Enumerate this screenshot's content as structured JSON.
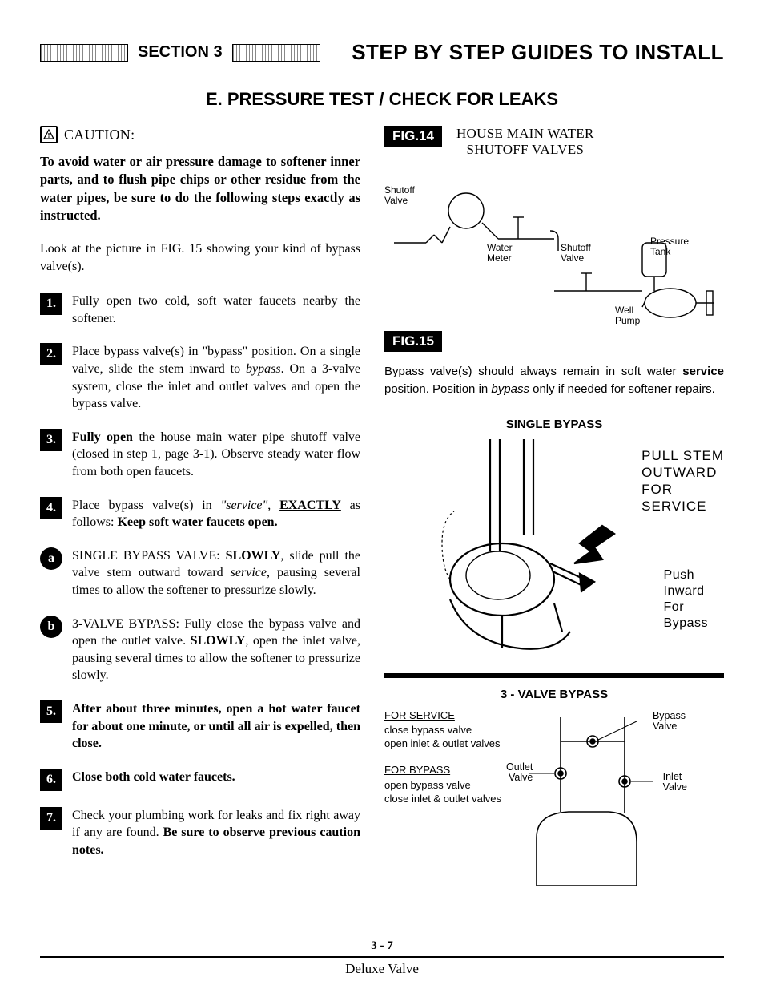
{
  "header": {
    "section_label": "SECTION 3",
    "main_title": "STEP BY STEP GUIDES TO INSTALL"
  },
  "subsection": "E.  PRESSURE TEST / CHECK FOR LEAKS",
  "caution": {
    "icon_glyph": "⚠",
    "label": "CAUTION:",
    "body": "To avoid water or air pressure damage to softener inner parts, and to flush pipe chips or other residue from the water pipes, be sure to do the following steps exactly as instructed."
  },
  "intro": "Look at the picture in FIG. 15 showing your kind of bypass valve(s).",
  "steps": [
    {
      "marker": "1.",
      "shape": "square",
      "body_html": "Fully open two cold, soft water faucets nearby the softener."
    },
    {
      "marker": "2.",
      "shape": "square",
      "body_html": "Place bypass valve(s) in \"bypass\" position. On a single valve, slide the stem inward to <span class=\"italic\">bypass</span>. On a 3-valve system, close the inlet and outlet valves and open the bypass valve."
    },
    {
      "marker": "3.",
      "shape": "square",
      "body_html": "<span class=\"bold\">Fully open</span> the house main water pipe shutoff valve (closed in step 1, page 3-1). Observe steady water flow from both open faucets."
    },
    {
      "marker": "4.",
      "shape": "square",
      "body_html": "Place bypass valve(s) in <span class=\"italic\">\"service\"</span>, <span class=\"bold underline\">EXACTLY</span> as follows: <span class=\"bold\">Keep soft water faucets open.</span>"
    },
    {
      "marker": "a",
      "shape": "round",
      "body_html": "SINGLE BYPASS VALVE: <span class=\"bold\">SLOWLY</span>, slide pull the valve stem outward toward <span class=\"italic\">service</span>, pausing several times to allow the softener to pressurize slowly."
    },
    {
      "marker": "b",
      "shape": "round",
      "body_html": "3-VALVE BYPASS: Fully close the bypass valve and open the outlet valve. <span class=\"bold\">SLOWLY</span>, open the inlet valve, pausing several times to allow the softener to pressurize slowly."
    },
    {
      "marker": "5.",
      "shape": "square",
      "body_html": "<span class=\"bold\">After about three minutes, open a hot water faucet for about one minute, or until all air is expelled, then close.</span>"
    },
    {
      "marker": "6.",
      "shape": "square",
      "body_html": "<span class=\"bold\">Close both cold water faucets.</span>"
    },
    {
      "marker": "7.",
      "shape": "square",
      "body_html": "Check your plumbing work for leaks and fix right away if any are found. <span class=\"bold\">Be sure to observe previous caution notes.</span>"
    }
  ],
  "fig14": {
    "label": "FIG.14",
    "title_line1": "HOUSE MAIN WATER",
    "title_line2": "SHUTOFF VALVES",
    "labels": {
      "shutoff_valve": "Shutoff\nValve",
      "water_meter": "Water\nMeter",
      "shutoff_valve2": "Shutoff\nValve",
      "pressure_tank": "Pressure\nTank",
      "well_pump": "Well\nPump"
    },
    "stroke_color": "#000000",
    "line_width": 1.3
  },
  "fig15": {
    "label": "FIG.15",
    "caption_html": "Bypass valve(s) should always remain in soft water <span class=\"bold\">service</span> position. Position in <span class=\"italic\">bypass</span> only if needed for softener repairs.",
    "single_heading": "SINGLE BYPASS",
    "single_labels": {
      "pull": "PULL STEM\nOUTWARD\nFOR\nSERVICE",
      "push": "Push\nInward\nFor\nBypass"
    },
    "three_heading": "3 - VALVE BYPASS",
    "three_text": {
      "service_head": "FOR SERVICE",
      "service_l1": "close bypass valve",
      "service_l2": "open inlet & outlet valves",
      "bypass_head": "FOR BYPASS",
      "bypass_l1": "open bypass valve",
      "bypass_l2": "close inlet & outlet valves"
    },
    "three_labels": {
      "bypass_valve": "Bypass\nValve",
      "outlet_valve": "Outlet\nValve",
      "inlet_valve": "Inlet\nValve"
    },
    "stroke_color": "#000000",
    "line_width": 2
  },
  "footer": {
    "page_num": "3 - 7",
    "footer_text": "Deluxe Valve"
  },
  "colors": {
    "black": "#000000",
    "white": "#ffffff",
    "hatch_gray": "#888888"
  }
}
